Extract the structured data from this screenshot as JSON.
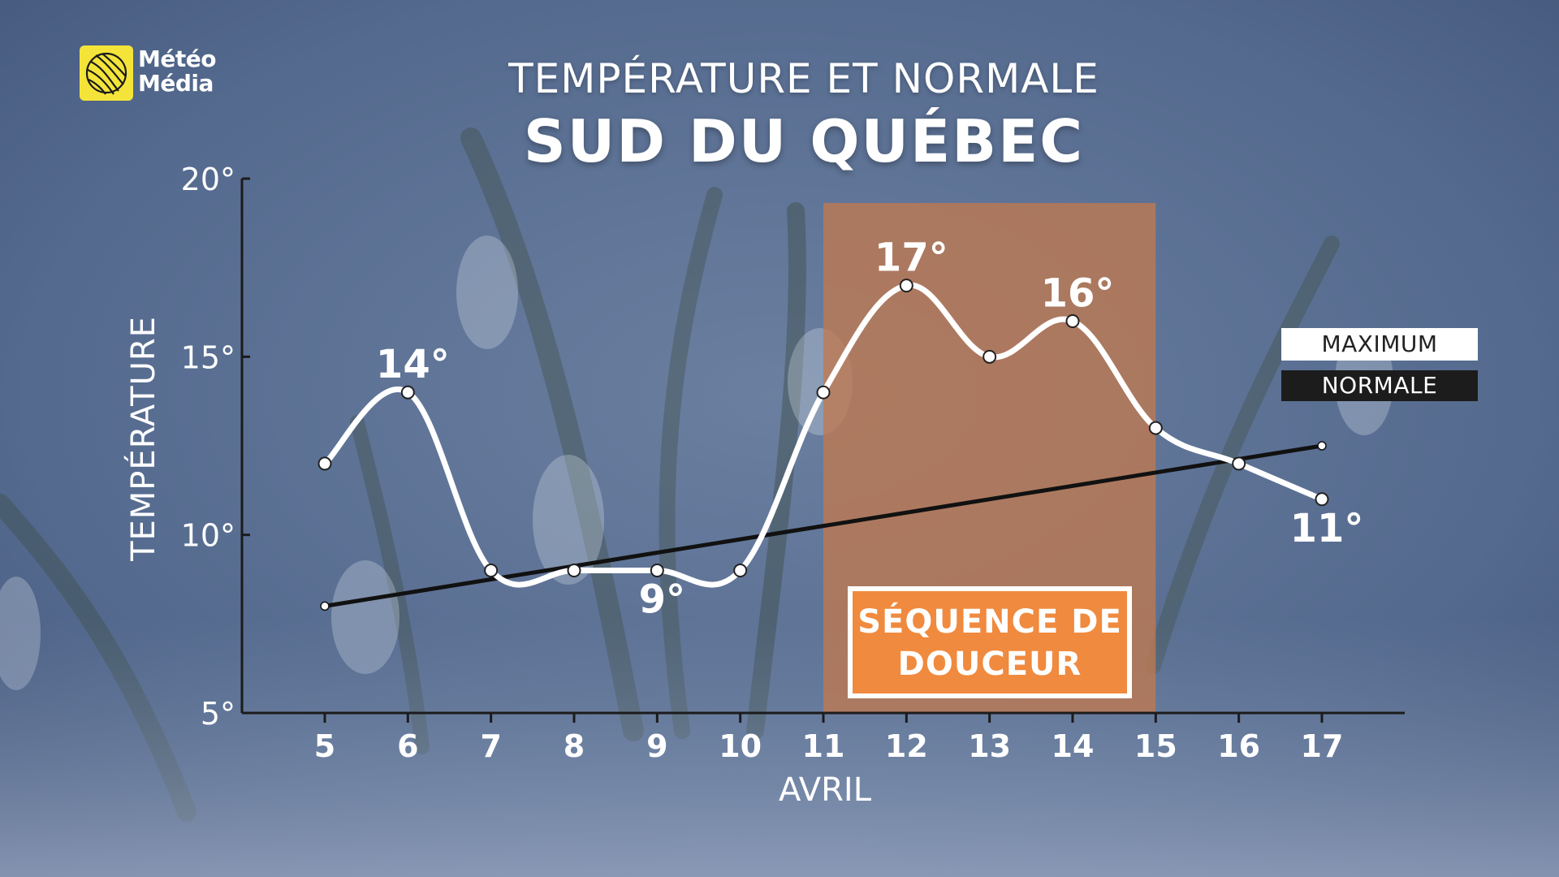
{
  "brand": {
    "logo_line1": "Météo",
    "logo_line2": "Média",
    "logo_color": "#f4e43a"
  },
  "titles": {
    "line1": "TEMPÉRATURE ET NORMALE",
    "line2": "SUD DU QUÉBEC"
  },
  "legend": {
    "maximum": "MAXIMUM",
    "normale": "NORMALE"
  },
  "callout": {
    "line1": "SÉQUENCE DE",
    "line2": "DOUCEUR",
    "color": "#f08a3e"
  },
  "colors": {
    "maximum_line": "#ffffff",
    "normale_line": "#111111",
    "highlight_band": "#c07a50"
  },
  "chart_data": {
    "type": "line",
    "title": "TEMPÉRATURE ET NORMALE",
    "subtitle": "SUD DU QUÉBEC",
    "xlabel": "AVRIL",
    "ylabel": "TEMPÉRATURE",
    "x": [
      5,
      6,
      7,
      8,
      9,
      10,
      11,
      12,
      13,
      14,
      15,
      16,
      17
    ],
    "y_ticks": [
      5,
      10,
      15,
      20
    ],
    "y_tick_labels": [
      "5°",
      "10°",
      "15°",
      "20°"
    ],
    "ylim": [
      5,
      20
    ],
    "xlim": [
      4,
      18
    ],
    "series": [
      {
        "name": "MAXIMUM",
        "values": [
          12,
          14,
          9,
          9,
          9,
          9,
          14,
          17,
          15,
          16,
          13,
          12,
          11
        ]
      },
      {
        "name": "NORMALE",
        "values": [
          8,
          null,
          null,
          null,
          null,
          null,
          null,
          null,
          null,
          null,
          null,
          null,
          12.5
        ]
      }
    ],
    "data_labels": [
      {
        "x": 6,
        "y": 14,
        "text": "14°"
      },
      {
        "x": 9,
        "y": 9,
        "text": "9°"
      },
      {
        "x": 12,
        "y": 17,
        "text": "17°"
      },
      {
        "x": 14,
        "y": 16,
        "text": "16°"
      },
      {
        "x": 17,
        "y": 11,
        "text": "11°"
      }
    ],
    "highlight_range": {
      "from": 11,
      "to": 15,
      "label": "SÉQUENCE DE DOUCEUR"
    },
    "grid": false,
    "legend_position": "right"
  }
}
